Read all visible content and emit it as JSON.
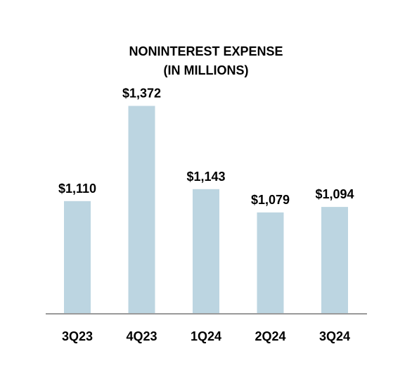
{
  "chart_data": {
    "type": "bar",
    "title": "NONINTEREST EXPENSE",
    "subtitle": "(IN MILLIONS)",
    "categories": [
      "3Q23",
      "4Q23",
      "1Q24",
      "2Q24",
      "3Q24"
    ],
    "values": [
      1110,
      1372,
      1143,
      1079,
      1094
    ],
    "data_labels": [
      "$1,110",
      "$1,372",
      "$1,143",
      "$1,079",
      "$1,094"
    ],
    "xlabel": "",
    "ylabel": "",
    "ylim": [
      800,
      1400
    ],
    "grid": false,
    "legend": "none",
    "bar_color": "#bcd5e1",
    "axis_color": "#9a9a9a"
  }
}
